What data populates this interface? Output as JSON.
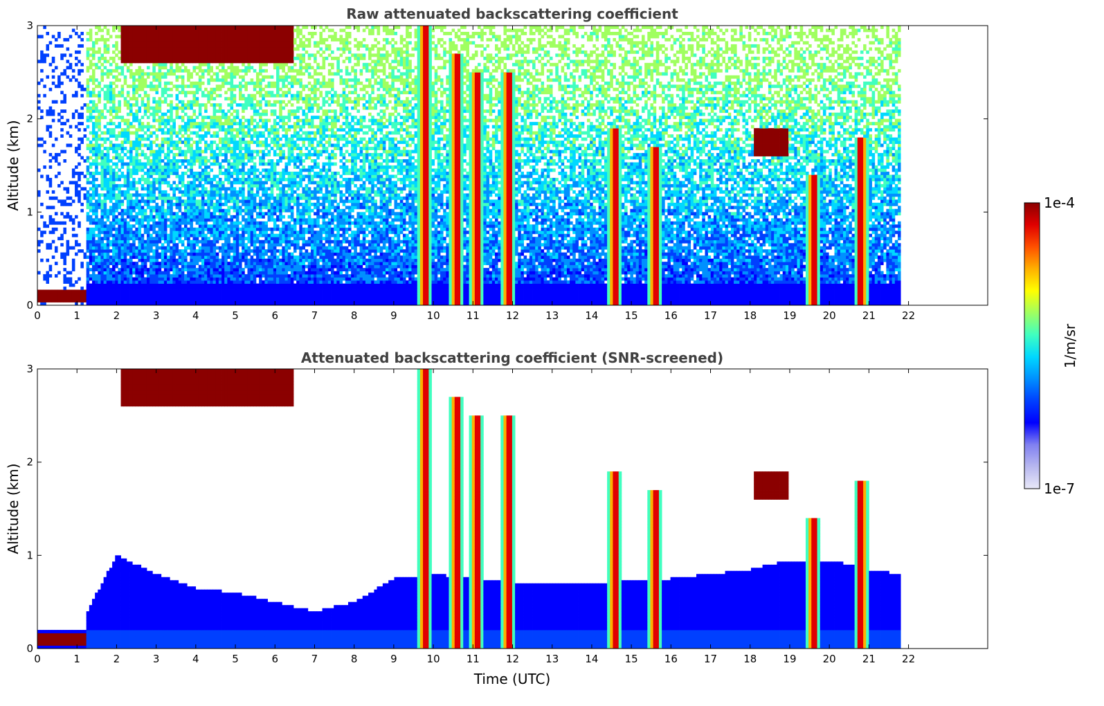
{
  "colormap": [
    "#e8e8f8",
    "#b8b8f0",
    "#8080f0",
    "#0000ff",
    "#0040ff",
    "#0090ff",
    "#00d8ff",
    "#40ffc0",
    "#a0ff60",
    "#ffff00",
    "#ffb000",
    "#ff5000",
    "#e00000",
    "#8b0000"
  ],
  "chart_data": [
    {
      "type": "heatmap",
      "title": "Raw attenuated backscattering coefficient",
      "xlabel": "",
      "ylabel": "Altitude (km)",
      "xlim": [
        0,
        24
      ],
      "ylim": [
        0,
        3
      ],
      "xticks": [
        "0",
        "1",
        "2",
        "3",
        "4",
        "5",
        "6",
        "7",
        "8",
        "9",
        "10",
        "11",
        "12",
        "13",
        "14",
        "15",
        "16",
        "17",
        "18",
        "19",
        "20",
        "21",
        "22"
      ],
      "yticks": [
        "0",
        "1",
        "2",
        "3"
      ],
      "data_end_time": 21.8,
      "low_level_layer": {
        "time_range": [
          0,
          1.2
        ],
        "altitude_km": 0.1
      },
      "cloud_features": [
        {
          "time": 9.8,
          "altitude_km": [
            0,
            3
          ]
        },
        {
          "time": 10.6,
          "altitude_km": [
            0,
            2.7
          ]
        },
        {
          "time": 11.1,
          "altitude_km": [
            0,
            2.5
          ]
        },
        {
          "time": 11.9,
          "altitude_km": [
            0,
            2.5
          ]
        },
        {
          "time": 14.6,
          "altitude_km": [
            0,
            1.9
          ]
        },
        {
          "time": 15.6,
          "altitude_km": [
            0,
            1.7
          ]
        },
        {
          "time": 19.6,
          "altitude_km": [
            0,
            1.4
          ]
        },
        {
          "time": 20.8,
          "altitude_km": [
            0,
            1.8
          ]
        },
        {
          "time": [
            2.1,
            6.5
          ],
          "altitude_km": [
            2.6,
            3.0
          ]
        },
        {
          "time": [
            18.1,
            19.0
          ],
          "altitude_km": [
            1.6,
            1.9
          ]
        }
      ]
    },
    {
      "type": "heatmap",
      "title": "Attenuated backscattering coefficient (SNR-screened)",
      "xlabel": "Time (UTC)",
      "ylabel": "Altitude (km)",
      "xlim": [
        0,
        24
      ],
      "ylim": [
        0,
        3
      ],
      "xticks": [
        "0",
        "1",
        "2",
        "3",
        "4",
        "5",
        "6",
        "7",
        "8",
        "9",
        "10",
        "11",
        "12",
        "13",
        "14",
        "15",
        "16",
        "17",
        "18",
        "19",
        "20",
        "21",
        "22"
      ],
      "yticks": [
        "0",
        "1",
        "2",
        "3"
      ],
      "data_end_time": 21.8,
      "screened_boundary_layer_top_km": [
        [
          1.2,
          0.35
        ],
        [
          2,
          1.0
        ],
        [
          3,
          0.8
        ],
        [
          4,
          0.65
        ],
        [
          5,
          0.6
        ],
        [
          6,
          0.5
        ],
        [
          7,
          0.4
        ],
        [
          8,
          0.5
        ],
        [
          9,
          0.75
        ],
        [
          10,
          0.8
        ],
        [
          12,
          0.7
        ],
        [
          14,
          0.7
        ],
        [
          16,
          0.75
        ],
        [
          18,
          0.85
        ],
        [
          19,
          0.95
        ],
        [
          20,
          0.95
        ],
        [
          21,
          0.85
        ],
        [
          21.8,
          0.8
        ]
      ]
    }
  ],
  "colorbar": {
    "label": "1/m/sr",
    "max_label": "1e-4",
    "min_label": "1e-7",
    "scale": "log",
    "range": [
      1e-07,
      0.0001
    ]
  }
}
